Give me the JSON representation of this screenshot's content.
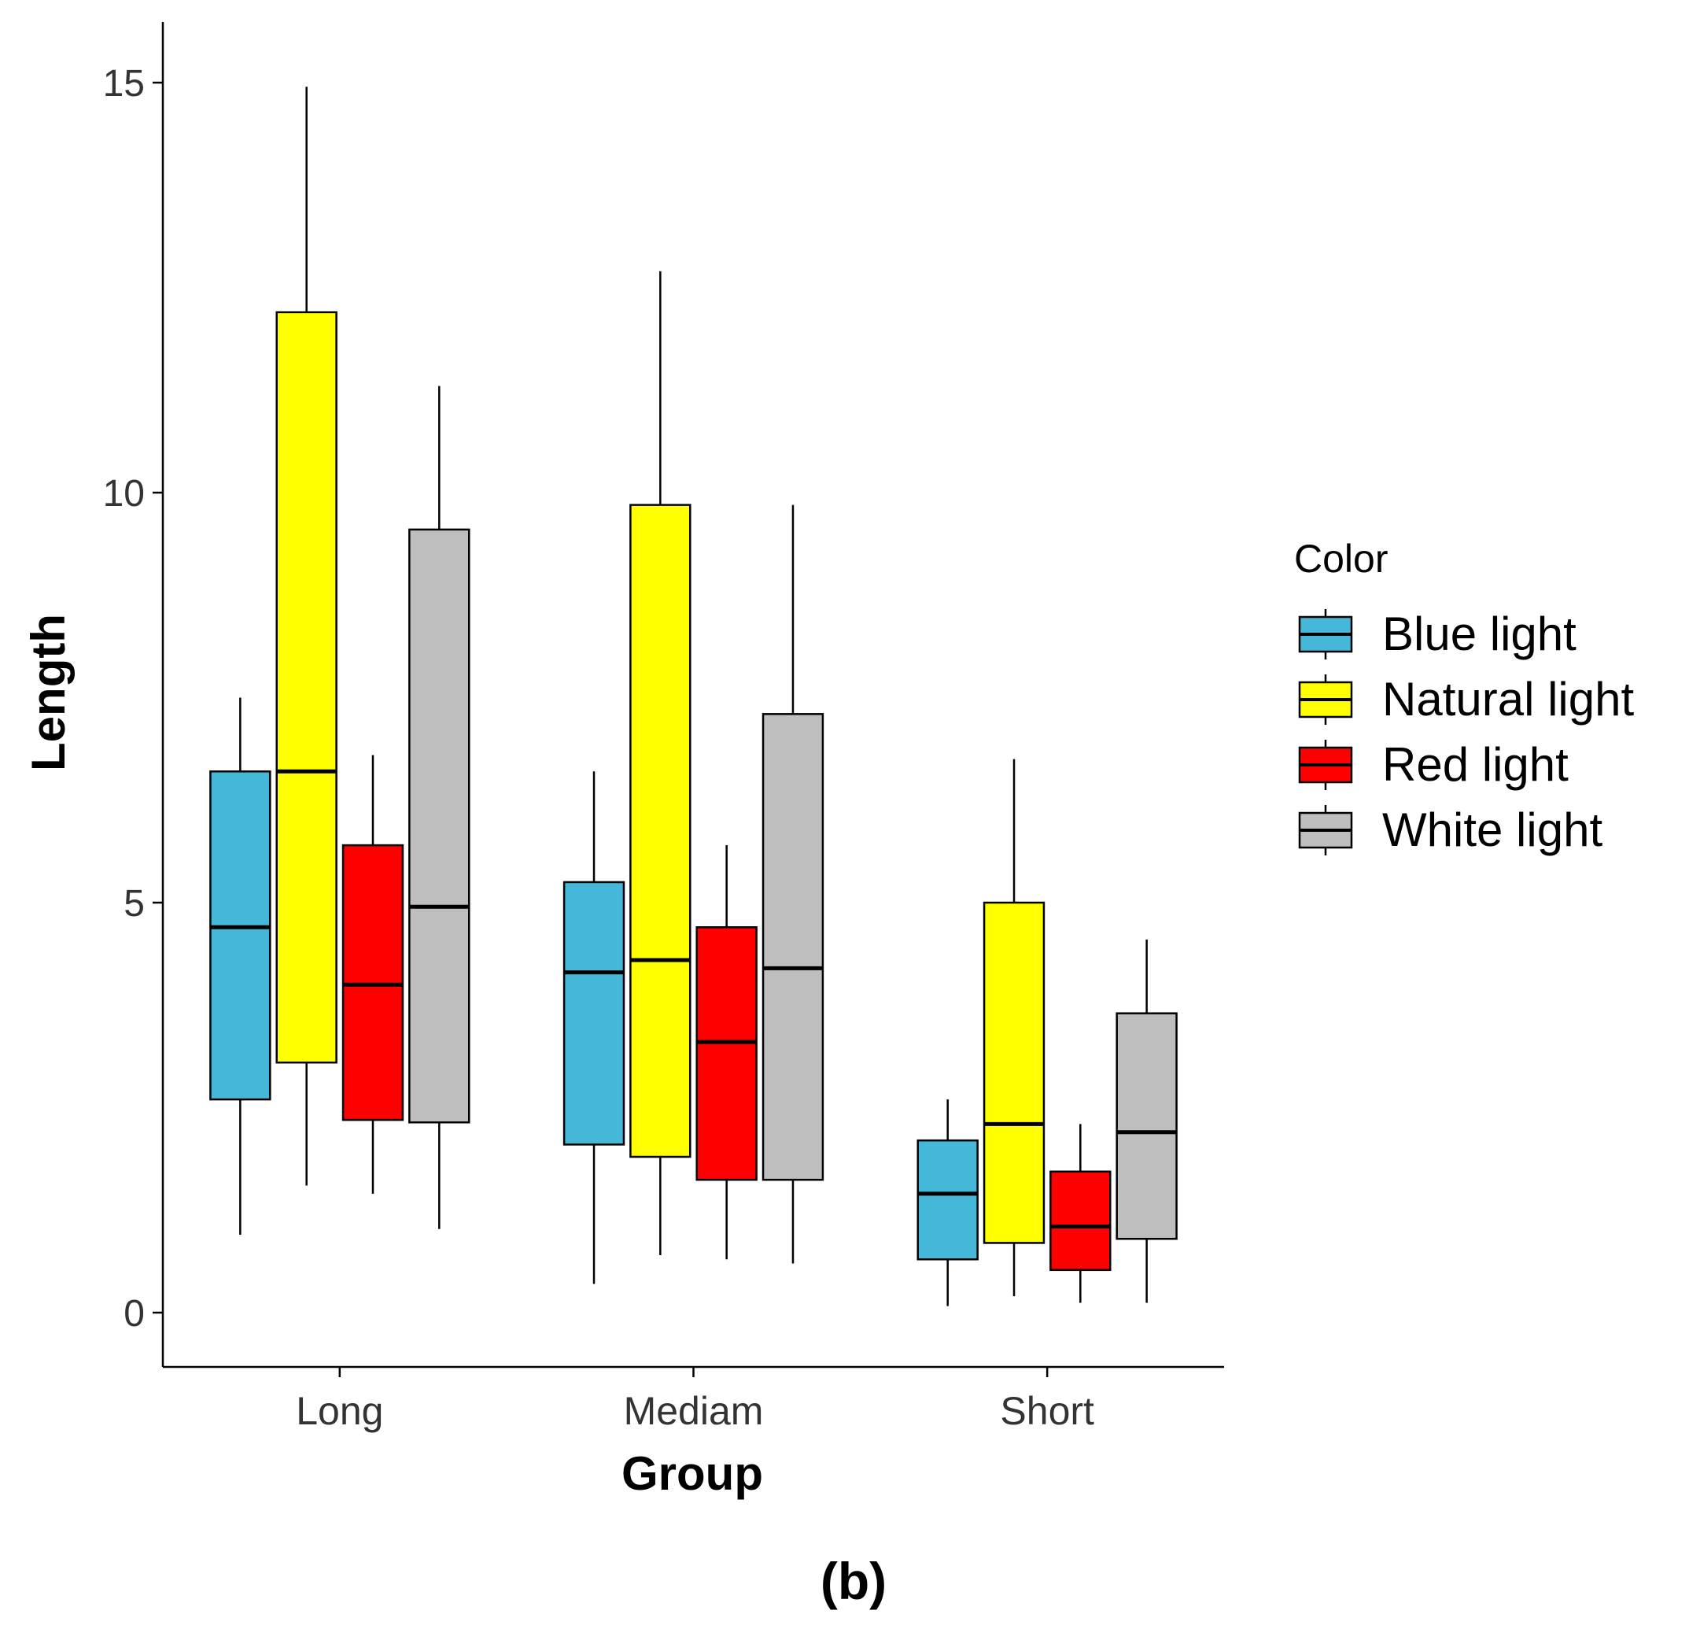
{
  "panel_label": "(b)",
  "chart_data": {
    "type": "box",
    "xlabel": "Group",
    "ylabel": "Length",
    "ylim": [
      -0.65,
      15.75
    ],
    "y_ticks": [
      0,
      5,
      10,
      15
    ],
    "categories": [
      "Long",
      "Mediam",
      "Short"
    ],
    "legend": {
      "title": "Color",
      "position": "right"
    },
    "series": [
      {
        "name": "Blue light",
        "color": "#45B8DA",
        "boxes": [
          {
            "min": 0.95,
            "q1": 2.6,
            "median": 4.7,
            "q3": 6.6,
            "max": 7.5
          },
          {
            "min": 0.35,
            "q1": 2.05,
            "median": 4.15,
            "q3": 5.25,
            "max": 6.6
          },
          {
            "min": 0.08,
            "q1": 0.65,
            "median": 1.45,
            "q3": 2.1,
            "max": 2.6
          }
        ]
      },
      {
        "name": "Natural light",
        "color": "#FFFF00",
        "boxes": [
          {
            "min": 1.55,
            "q1": 3.05,
            "median": 6.6,
            "q3": 12.2,
            "max": 14.95
          },
          {
            "min": 0.7,
            "q1": 1.9,
            "median": 4.3,
            "q3": 9.85,
            "max": 12.7
          },
          {
            "min": 0.2,
            "q1": 0.85,
            "median": 2.3,
            "q3": 5.0,
            "max": 6.75
          }
        ]
      },
      {
        "name": "Red light",
        "color": "#FF0000",
        "boxes": [
          {
            "min": 1.45,
            "q1": 2.35,
            "median": 4.0,
            "q3": 5.7,
            "max": 6.8
          },
          {
            "min": 0.65,
            "q1": 1.62,
            "median": 3.3,
            "q3": 4.7,
            "max": 5.7
          },
          {
            "min": 0.12,
            "q1": 0.52,
            "median": 1.05,
            "q3": 1.72,
            "max": 2.3
          }
        ]
      },
      {
        "name": "White light",
        "color": "#BEBEBE",
        "boxes": [
          {
            "min": 1.02,
            "q1": 2.32,
            "median": 4.95,
            "q3": 9.55,
            "max": 11.3
          },
          {
            "min": 0.6,
            "q1": 1.62,
            "median": 4.2,
            "q3": 7.3,
            "max": 9.85
          },
          {
            "min": 0.12,
            "q1": 0.9,
            "median": 2.2,
            "q3": 3.65,
            "max": 4.55
          }
        ]
      }
    ]
  }
}
